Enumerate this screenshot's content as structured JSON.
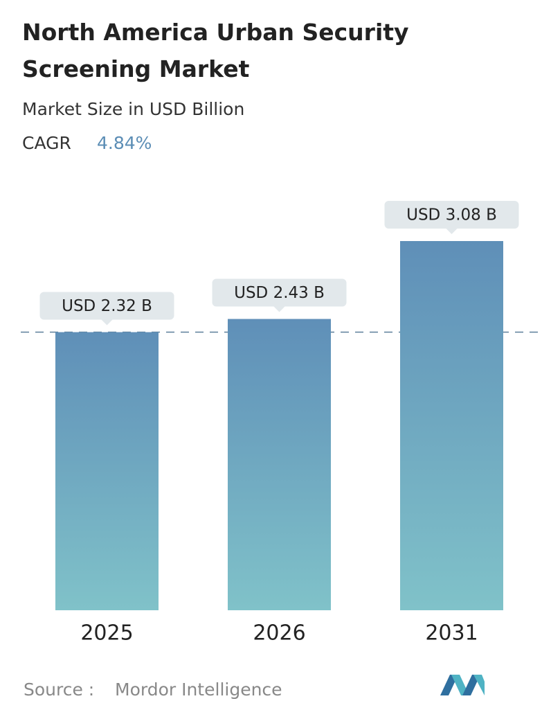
{
  "chart_data": {
    "type": "bar",
    "title": "North America Urban Security Screening Market",
    "subtitle": "Market Size in USD Billion",
    "cagr_label": "CAGR",
    "cagr_value": "4.84%",
    "categories": [
      "2025",
      "2026",
      "2031"
    ],
    "values": [
      2.32,
      2.43,
      3.08
    ],
    "value_labels": [
      "USD 2.32 B",
      "USD 2.43 B",
      "USD 3.08 B"
    ],
    "ylim": [
      0,
      3.08
    ],
    "source_label": "Source :",
    "source": "Mordor Intelligence"
  }
}
